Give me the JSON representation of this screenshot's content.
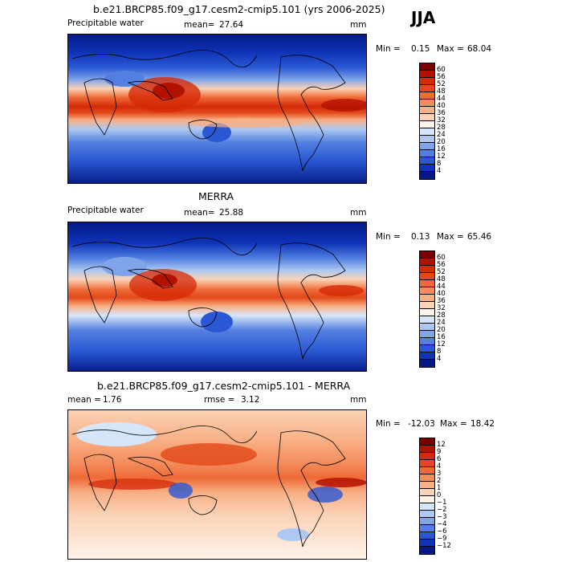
{
  "season": "JJA",
  "panels": [
    {
      "title": "b.e21.BRCP85.f09_g17.cesm2-cmip5.101 (yrs 2006-2025)",
      "variable": "Precipitable water",
      "mean_label": "mean=",
      "mean_value": "27.64",
      "units": "mm",
      "min_label": "Min =",
      "min_value": "0.15",
      "max_label": "Max =",
      "max_value": "68.04",
      "colorbar": {
        "ticks": [
          "60",
          "56",
          "52",
          "48",
          "44",
          "40",
          "36",
          "32",
          "28",
          "24",
          "20",
          "16",
          "12",
          "8",
          "4"
        ],
        "colors": [
          "#7a0000",
          "#b41200",
          "#d42a08",
          "#e24818",
          "#ee6a36",
          "#f48c5c",
          "#f8b086",
          "#fbd2b6",
          "#fff4ea",
          "#d6e6fa",
          "#adc8f2",
          "#7fa4ea",
          "#5380e0",
          "#2a58d4",
          "#0f34b8",
          "#041a86"
        ]
      }
    },
    {
      "title": "MERRA",
      "variable": "Precipitable water",
      "mean_label": "mean=",
      "mean_value": "25.88",
      "units": "mm",
      "min_label": "Min =",
      "min_value": "0.13",
      "max_label": "Max =",
      "max_value": "65.46",
      "colorbar": {
        "ticks": [
          "60",
          "56",
          "52",
          "48",
          "44",
          "40",
          "36",
          "32",
          "28",
          "24",
          "20",
          "16",
          "12",
          "8",
          "4"
        ],
        "colors": [
          "#7a0000",
          "#b41200",
          "#d42a08",
          "#e24818",
          "#ee6a36",
          "#f48c5c",
          "#f8b086",
          "#fbd2b6",
          "#fff4ea",
          "#d6e6fa",
          "#adc8f2",
          "#7fa4ea",
          "#5380e0",
          "#2a58d4",
          "#0f34b8",
          "#041a86"
        ]
      }
    },
    {
      "title": "b.e21.BRCP85.f09_g17.cesm2-cmip5.101 - MERRA",
      "mean_label": "mean =",
      "mean_value": "1.76",
      "rmse_label": "rmse =",
      "rmse_value": "3.12",
      "units": "mm",
      "min_label": "Min =",
      "min_value": "-12.03",
      "max_label": "Max =",
      "max_value": "18.42",
      "colorbar": {
        "ticks": [
          "12",
          "9",
          "6",
          "4",
          "3",
          "2",
          "1",
          "0",
          "−1",
          "−2",
          "−3",
          "−4",
          "−6",
          "−9",
          "−12"
        ],
        "colors": [
          "#7a0000",
          "#b41200",
          "#d42a08",
          "#e24818",
          "#ee6a36",
          "#f48c5c",
          "#f8b086",
          "#fbd2b6",
          "#fff4ea",
          "#d6e6fa",
          "#adc8f2",
          "#7fa4ea",
          "#5380e0",
          "#2a58d4",
          "#0f34b8",
          "#041a86"
        ]
      }
    }
  ]
}
